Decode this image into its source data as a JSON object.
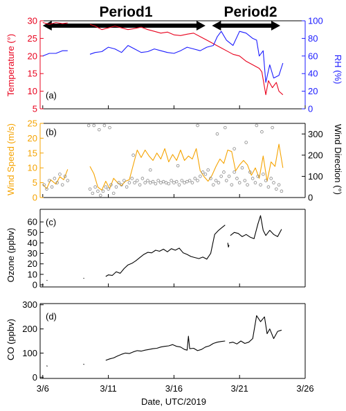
{
  "periods": [
    {
      "label": "Period1",
      "start": 6.0,
      "end": 18.4
    },
    {
      "label": "Period2",
      "start": 18.9,
      "end": 24.1
    }
  ],
  "colors": {
    "temperature": "#e8001c",
    "rh": "#1a1aff",
    "wind_speed": "#f5a300",
    "wind_direction": "#888888",
    "ozone": "#000000",
    "co": "#000000",
    "axis": "#000000"
  },
  "chart_data": [
    {
      "type": "line",
      "panel_tag": "(a)",
      "xlabel": "",
      "ylabel": "Temperature (°)",
      "ylabel_right": "RH (%)",
      "xlim": [
        5.8,
        26
      ],
      "ylim": [
        5,
        30
      ],
      "ylim_right": [
        0,
        100
      ],
      "yticks": [
        5,
        10,
        15,
        20,
        25,
        30
      ],
      "yticks_right": [
        0,
        20,
        40,
        60,
        80,
        100
      ],
      "series": [
        {
          "axis": "left",
          "x": [
            6.0,
            6.5,
            7.0,
            7.5,
            7.9
          ],
          "y": [
            29.5,
            29.0,
            29.5,
            29.2,
            29.4
          ]
        },
        {
          "axis": "left",
          "x": [
            9.6,
            10.0,
            10.5,
            11.0,
            11.5,
            12.0,
            12.5,
            13.0,
            13.5,
            14.0,
            14.5,
            15.0,
            15.5,
            16.0,
            16.5,
            17.0,
            17.5,
            18.0,
            18.5,
            19.0,
            19.5,
            20.0,
            20.5,
            21.0,
            21.5,
            22.0,
            22.5,
            22.7,
            23.0,
            23.2,
            23.5,
            23.8,
            24.0,
            24.3
          ],
          "y": [
            29.0,
            28.5,
            27.5,
            28.0,
            28.5,
            28.0,
            27.5,
            27.8,
            28.2,
            27.5,
            27.0,
            26.5,
            26.8,
            26.0,
            25.8,
            26.2,
            26.5,
            25.5,
            24.5,
            23.5,
            22.5,
            21.5,
            20.5,
            20.0,
            18.5,
            17.5,
            16.5,
            15.5,
            9.0,
            13.0,
            11.0,
            12.5,
            10.0,
            9.0
          ]
        },
        {
          "axis": "right",
          "x": [
            6.0,
            6.5,
            7.0,
            7.5,
            7.9
          ],
          "y": [
            60,
            63,
            63,
            66,
            66
          ]
        },
        {
          "axis": "right",
          "x": [
            9.6,
            10.0,
            10.5,
            11.0,
            11.5,
            12.0,
            12.5,
            13.0,
            13.5,
            14.0,
            14.5,
            15.0,
            15.5,
            16.0,
            16.5,
            17.0,
            17.5,
            18.0,
            18.5,
            19.0,
            19.3,
            19.6,
            20.0,
            20.5,
            21.0,
            21.5,
            22.0,
            22.3,
            22.5,
            22.8,
            23.0,
            23.3,
            23.6,
            24.0,
            24.3
          ],
          "y": [
            62,
            64,
            65,
            70,
            68,
            64,
            72,
            68,
            64,
            65,
            68,
            66,
            64,
            63,
            66,
            70,
            68,
            66,
            70,
            72,
            82,
            88,
            78,
            72,
            88,
            86,
            80,
            78,
            60,
            66,
            30,
            50,
            35,
            38,
            52
          ]
        }
      ]
    },
    {
      "type": "line",
      "panel_tag": "(b)",
      "xlabel": "",
      "ylabel": "Wind Speed (m/s)",
      "ylabel_right": "Wind Direction (°)",
      "xlim": [
        5.8,
        26
      ],
      "ylim": [
        0,
        25
      ],
      "ylim_right": [
        0,
        350
      ],
      "yticks": [
        0,
        5,
        10,
        15,
        20,
        25
      ],
      "yticks_right": [
        0,
        100,
        200,
        300
      ],
      "series": [
        {
          "axis": "left",
          "kind": "line",
          "x": [
            6.0,
            6.3,
            6.6,
            7.0,
            7.3,
            7.6,
            7.9
          ],
          "y": [
            4.5,
            3.0,
            6.0,
            4.5,
            7.0,
            6.0,
            9.5
          ]
        },
        {
          "axis": "left",
          "kind": "line",
          "x": [
            9.6,
            9.9,
            10.2,
            10.5,
            10.8,
            11.1,
            11.4,
            11.7,
            12.0,
            12.3,
            12.6,
            12.9,
            13.2,
            13.5,
            13.8,
            14.1,
            14.4,
            14.7,
            15.0,
            15.3,
            15.6,
            15.9,
            16.2,
            16.5,
            16.8,
            17.1,
            17.4,
            17.7,
            18.0,
            18.3,
            18.6,
            18.9,
            19.2,
            19.5,
            19.8,
            20.1,
            20.4,
            20.7,
            21.0,
            21.3,
            21.6,
            21.9,
            22.2,
            22.5,
            22.8,
            23.1,
            23.4,
            23.7,
            24.0,
            24.3
          ],
          "y": [
            10.5,
            8.0,
            3.5,
            2.5,
            5.5,
            3.0,
            6.5,
            5.0,
            4.0,
            5.5,
            6.0,
            11.0,
            16.0,
            13.5,
            16.0,
            14.0,
            12.5,
            15.0,
            13.0,
            16.5,
            12.0,
            14.5,
            12.5,
            16.0,
            12.5,
            14.0,
            13.0,
            16.5,
            9.0,
            7.0,
            5.5,
            7.5,
            10.5,
            13.0,
            11.5,
            16.0,
            15.5,
            9.0,
            11.0,
            12.5,
            11.0,
            7.5,
            10.0,
            6.5,
            14.0,
            5.5,
            12.0,
            10.5,
            18.0,
            10.0
          ]
        },
        {
          "axis": "right",
          "kind": "scatter",
          "x": [
            6.1,
            6.3,
            6.5,
            6.7,
            6.9,
            7.1,
            7.3,
            7.5,
            7.7,
            7.9,
            9.6,
            9.8,
            10.0,
            10.2,
            10.4,
            10.6,
            10.8,
            11.0,
            11.2,
            11.4,
            11.6,
            11.8,
            12.0,
            12.2,
            12.4,
            12.6,
            12.8,
            13.0,
            13.2,
            13.4,
            13.6,
            13.8,
            14.0,
            14.2,
            14.4,
            14.6,
            14.8,
            15.0,
            15.2,
            15.4,
            15.6,
            15.8,
            16.0,
            16.2,
            16.4,
            16.6,
            16.8,
            17.0,
            17.2,
            17.4,
            17.6,
            17.8,
            18.0,
            18.2,
            18.4,
            18.6,
            18.8,
            19.0,
            19.2,
            19.4,
            19.6,
            19.8,
            20.0,
            20.2,
            20.4,
            20.6,
            20.8,
            21.0,
            21.2,
            21.4,
            21.6,
            21.8,
            22.0,
            22.2,
            22.4,
            22.6,
            22.8,
            23.0,
            23.2,
            23.4,
            23.6,
            23.8,
            24.0,
            24.2,
            9.5,
            9.9,
            10.3,
            10.7,
            11.1,
            19.3,
            19.9,
            21.5,
            22.3,
            22.7,
            23.5,
            12.9,
            14.2,
            16.3,
            17.8,
            20.6
          ],
          "y": [
            60,
            40,
            80,
            50,
            90,
            70,
            110,
            60,
            100,
            80,
            40,
            20,
            50,
            30,
            10,
            30,
            50,
            40,
            60,
            20,
            50,
            70,
            60,
            80,
            50,
            70,
            90,
            70,
            80,
            60,
            90,
            70,
            80,
            70,
            75,
            65,
            80,
            70,
            75,
            70,
            65,
            80,
            70,
            75,
            60,
            80,
            70,
            75,
            80,
            70,
            90,
            80,
            100,
            120,
            110,
            130,
            90,
            60,
            80,
            70,
            100,
            120,
            80,
            100,
            60,
            120,
            90,
            70,
            140,
            80,
            60,
            120,
            90,
            70,
            100,
            60,
            110,
            80,
            50,
            90,
            70,
            40,
            60,
            30,
            340,
            340,
            320,
            340,
            330,
            300,
            330,
            260,
            340,
            310,
            330,
            200,
            130,
            150,
            340,
            230
          ]
        }
      ]
    },
    {
      "type": "line",
      "panel_tag": "(c)",
      "xlabel": "",
      "ylabel": "Ozone (ppbv)",
      "xlim": [
        5.8,
        26
      ],
      "ylim": [
        -2,
        72
      ],
      "yticks": [
        0,
        10,
        20,
        30,
        40,
        50,
        60
      ],
      "series": [
        {
          "x": [
            6.3,
            6.35
          ],
          "y": [
            4.5,
            4.0
          ]
        },
        {
          "x": [
            9.1,
            9.15
          ],
          "y": [
            6.5,
            6.0
          ]
        },
        {
          "x": [
            10.8,
            11.0,
            11.3,
            11.6,
            11.9,
            12.2,
            12.5,
            12.8,
            13.1,
            13.4,
            13.7,
            14.0,
            14.3,
            14.6,
            14.9,
            15.2,
            15.5,
            15.8,
            16.1,
            16.4,
            16.7,
            17.0,
            17.3,
            17.6,
            17.9,
            18.2,
            18.5,
            18.8,
            19.1,
            19.4,
            19.7,
            19.9
          ],
          "y": [
            8.0,
            9.5,
            9.0,
            12.5,
            11.0,
            15.5,
            19.0,
            20.5,
            23.0,
            26.0,
            29.0,
            31.0,
            30.5,
            33.0,
            32.0,
            34.0,
            31.5,
            34.5,
            33.0,
            35.0,
            30.5,
            29.0,
            27.0,
            26.0,
            25.0,
            26.5,
            24.5,
            30.0,
            48.0,
            52.0,
            55.0,
            57.0
          ]
        },
        {
          "x": [
            20.1,
            20.15,
            20.2
          ],
          "y": [
            40.0,
            36.0,
            38.0
          ]
        },
        {
          "x": [
            20.3,
            20.6,
            20.9,
            21.2,
            21.5,
            21.8,
            22.1,
            22.4,
            22.6,
            22.8,
            23.0,
            23.3,
            23.6,
            23.9,
            24.2
          ],
          "y": [
            47.0,
            50.0,
            49.0,
            46.0,
            48.0,
            45.5,
            44.0,
            58.0,
            66.0,
            52.0,
            47.0,
            52.0,
            48.0,
            46.0,
            53.0
          ]
        }
      ]
    },
    {
      "type": "line",
      "panel_tag": "(d)",
      "xlabel": "Date, UTC/2019",
      "ylabel": "CO (ppbv)",
      "xlim": [
        5.8,
        26
      ],
      "ylim": [
        -5,
        305
      ],
      "yticks": [
        0,
        100,
        200,
        300
      ],
      "xticks": [
        6,
        11,
        16,
        21,
        26
      ],
      "xticklabels": [
        "3/6",
        "3/11",
        "3/16",
        "3/21",
        "3/26"
      ],
      "series": [
        {
          "x": [
            6.3,
            6.35
          ],
          "y": [
            48,
            45
          ]
        },
        {
          "x": [
            9.1,
            9.15
          ],
          "y": [
            55,
            52
          ]
        },
        {
          "x": [
            10.8,
            11.1,
            11.4,
            11.7,
            12.0,
            12.3,
            12.6,
            12.9,
            13.2,
            13.5,
            13.8,
            14.1,
            14.4,
            14.7,
            15.0,
            15.3,
            15.6,
            15.9,
            16.2,
            16.5,
            16.8,
            17.0,
            17.1,
            17.2,
            17.5,
            17.8,
            18.1,
            18.4,
            18.7,
            19.0,
            19.3,
            19.6,
            19.9
          ],
          "y": [
            70,
            76,
            80,
            88,
            95,
            100,
            98,
            105,
            110,
            108,
            112,
            115,
            118,
            120,
            125,
            128,
            130,
            135,
            128,
            125,
            115,
            112,
            170,
            118,
            120,
            110,
            115,
            125,
            130,
            140,
            145,
            148,
            150
          ]
        },
        {
          "x": [
            20.2,
            20.5,
            20.8,
            21.1,
            21.4,
            21.7,
            22.0,
            22.3,
            22.6,
            22.9,
            23.1,
            23.3,
            23.6,
            23.9,
            24.2
          ],
          "y": [
            142,
            145,
            138,
            150,
            140,
            145,
            160,
            255,
            230,
            250,
            180,
            200,
            160,
            190,
            195
          ]
        }
      ]
    }
  ]
}
